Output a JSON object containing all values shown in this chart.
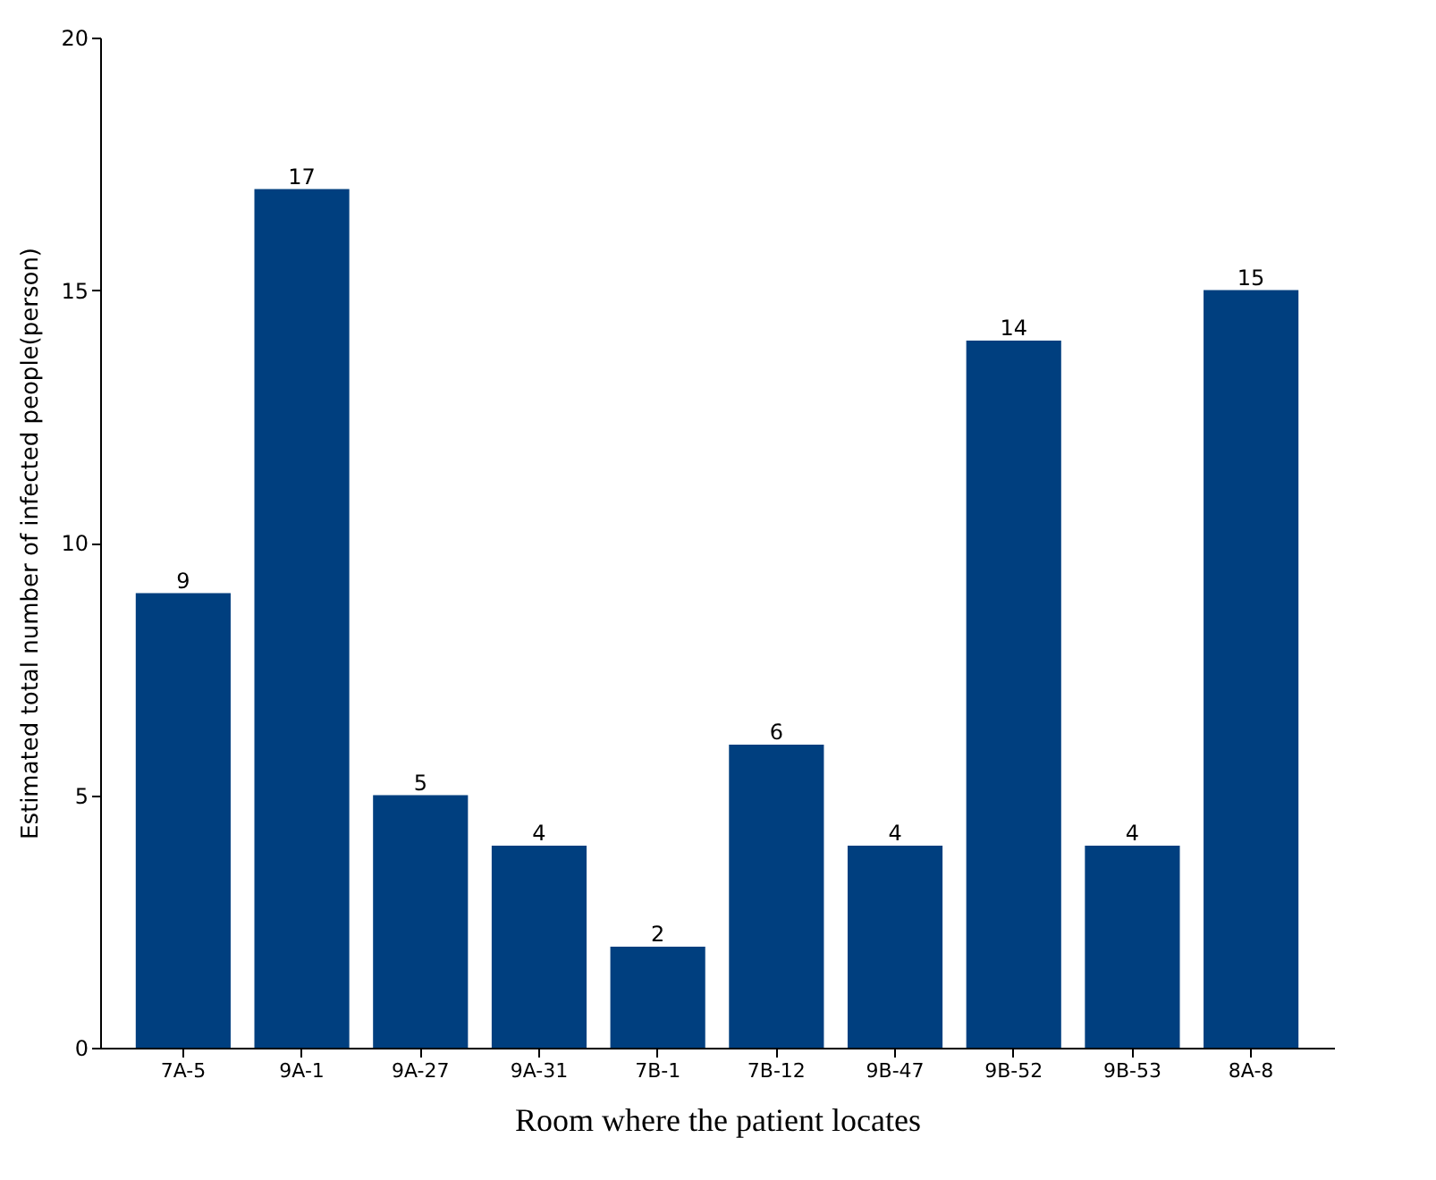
{
  "chart_data": {
    "type": "bar",
    "xlabel": "Room where the patient locates",
    "ylabel": "Estimated total number of infected people(person)",
    "categories": [
      "7A-5",
      "9A-1",
      "9A-27",
      "9A-31",
      "7B-1",
      "7B-12",
      "9B-47",
      "9B-52",
      "9B-53",
      "8A-8"
    ],
    "values": [
      9,
      17,
      5,
      4,
      2,
      6,
      4,
      14,
      4,
      15
    ],
    "color": "#003f7f",
    "ylim": [
      0,
      20
    ],
    "yticks": [
      0,
      5,
      10,
      15,
      20
    ],
    "grid": false,
    "data_labels": true
  }
}
